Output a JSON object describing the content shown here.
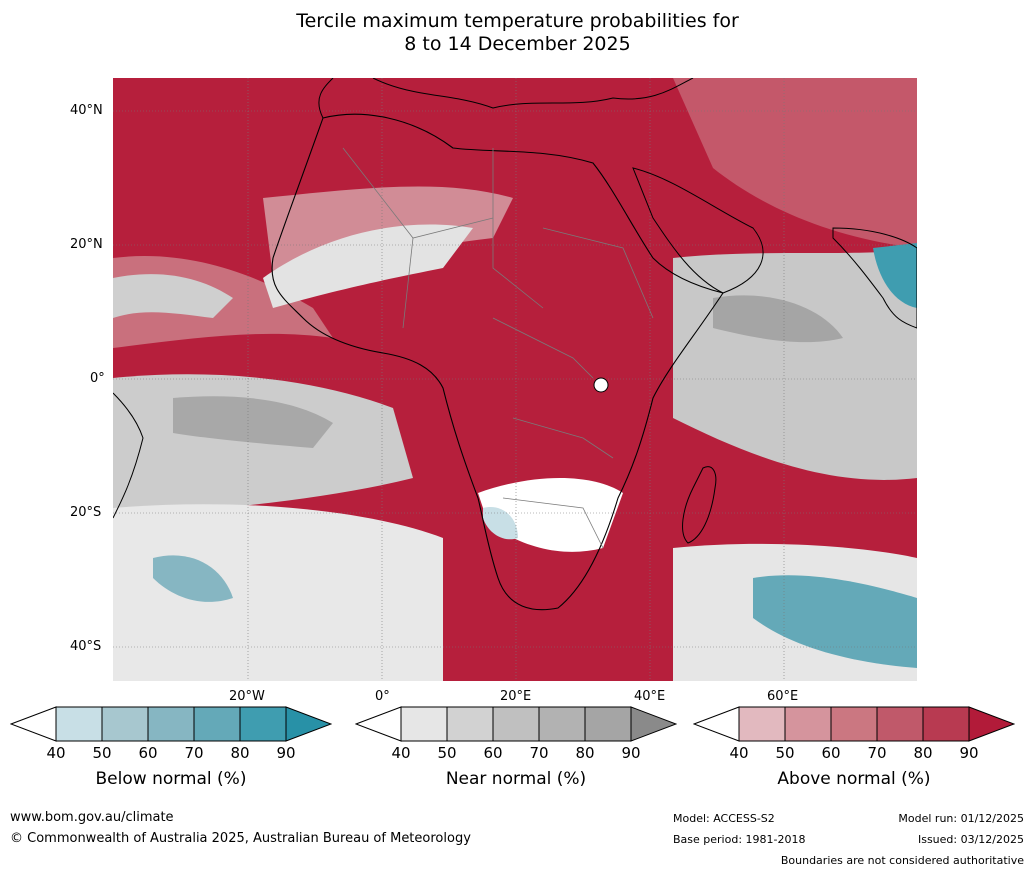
{
  "title_line1": "Tercile maximum temperature probabilities for",
  "title_line2": "8 to 14 December 2025",
  "latitude_labels": [
    "40°N",
    "20°N",
    "0°",
    "20°S",
    "40°S"
  ],
  "longitude_labels": [
    "20°W",
    "0°",
    "20°E",
    "40°E",
    "60°E"
  ],
  "colorbars": [
    {
      "label": "Below normal (%)",
      "ticks": [
        "40",
        "50",
        "60",
        "70",
        "80",
        "90"
      ],
      "colors": [
        "#ffffff",
        "#c8dfe6",
        "#a7c7cf",
        "#86b6c2",
        "#64a9b8",
        "#3f9db0",
        "#2891a7"
      ]
    },
    {
      "label": "Near normal (%)",
      "ticks": [
        "40",
        "50",
        "60",
        "70",
        "80",
        "90"
      ],
      "colors": [
        "#ffffff",
        "#e6e6e6",
        "#d2d2d2",
        "#c0c0c0",
        "#b2b2b2",
        "#a5a5a5",
        "#8a8a8a"
      ]
    },
    {
      "label": "Above normal (%)",
      "ticks": [
        "40",
        "50",
        "60",
        "70",
        "80",
        "90"
      ],
      "colors": [
        "#ffffff",
        "#e2b9bf",
        "#d5949d",
        "#cb7781",
        "#c0596a",
        "#b83a51",
        "#b21b39"
      ]
    }
  ],
  "footer": {
    "url": "www.bom.gov.au/climate",
    "copyright": "© Commonwealth of Australia 2025, Australian Bureau of Meteorology",
    "model": "Model: ACCESS-S2",
    "base_period": "Base period: 1981-2018",
    "model_run": "Model run: 01/12/2025",
    "issued": "Issued: 03/12/2025",
    "disclaimer": "Boundaries are not considered authoritative"
  }
}
